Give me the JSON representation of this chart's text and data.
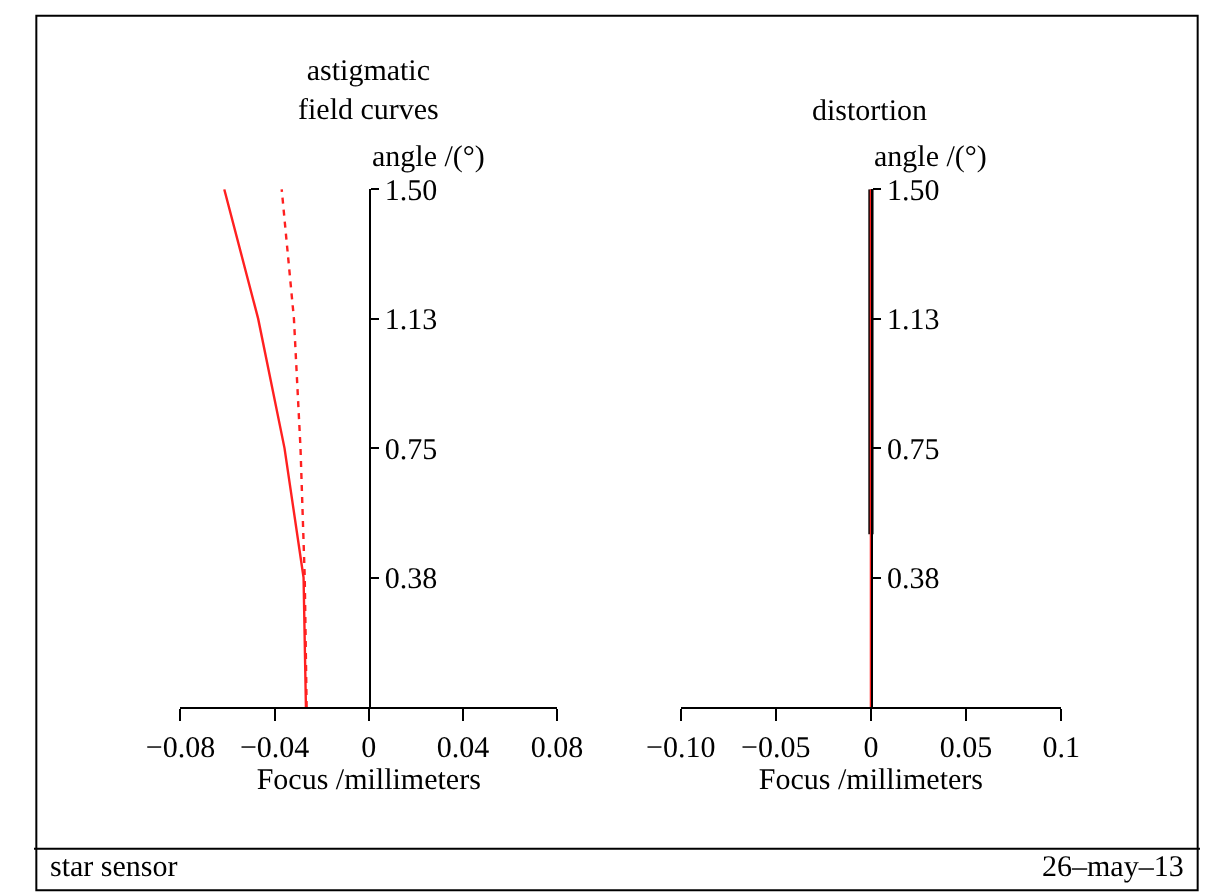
{
  "chart_data": [
    {
      "type": "line",
      "title": "astigmatic\nfield curves",
      "ylabel": "angle /(°)",
      "xlabel": "Focus /millimeters",
      "xlim": [
        -0.08,
        0.08
      ],
      "xticks": [
        {
          "value": -0.08,
          "label": "−0.08"
        },
        {
          "value": -0.04,
          "label": "−0.04"
        },
        0,
        0.04,
        0.08
      ],
      "ylim": [
        0,
        1.5
      ],
      "yticks": [
        {
          "value": 0.375,
          "label": "0.38"
        },
        0.75,
        {
          "value": 1.125,
          "label": "1.13"
        },
        {
          "value": 1.5,
          "label": "1.50"
        }
      ],
      "marker": "none",
      "series": [
        {
          "color": "#ff2020",
          "line_style": "solid",
          "x": [
            -0.0267,
            -0.0277,
            -0.0358,
            -0.047,
            -0.0614
          ],
          "values": [
            0,
            0.375,
            0.75,
            1.125,
            1.5
          ]
        },
        {
          "color": "#ff2020",
          "line_style": "dotted",
          "x": [
            -0.0264,
            -0.0272,
            -0.029,
            -0.0318,
            -0.037
          ],
          "values": [
            0,
            0.375,
            0.75,
            1.125,
            1.5
          ]
        }
      ],
      "annotations": [
        "star sensor"
      ]
    },
    {
      "type": "line",
      "title": "distortion",
      "ylabel": "angle /(°)",
      "xlabel": "Focus /millimeters",
      "xlim": [
        -0.1,
        0.1
      ],
      "xticks": [
        {
          "value": -0.1,
          "label": "−0.10"
        },
        {
          "value": -0.05,
          "label": "−0.05"
        },
        0,
        0.05,
        0.1
      ],
      "ylim": [
        0,
        1.5
      ],
      "yticks": [
        {
          "value": 0.375,
          "label": "0.38"
        },
        0.75,
        {
          "value": 1.125,
          "label": "1.13"
        },
        {
          "value": 1.5,
          "label": "1.50"
        }
      ],
      "marker": "none",
      "series": [
        {
          "color": "#000000",
          "line_style": "solid",
          "x": [
            0,
            0,
            0
          ],
          "values": [
            0.5,
            1.0,
            1.5
          ]
        },
        {
          "color": "#ff2020",
          "line_style": "solid",
          "x": [
            0,
            0,
            0,
            0,
            0
          ],
          "values": [
            0,
            0.375,
            0.75,
            1.125,
            1.5
          ]
        }
      ],
      "annotations": [
        "26–may–13"
      ]
    }
  ]
}
